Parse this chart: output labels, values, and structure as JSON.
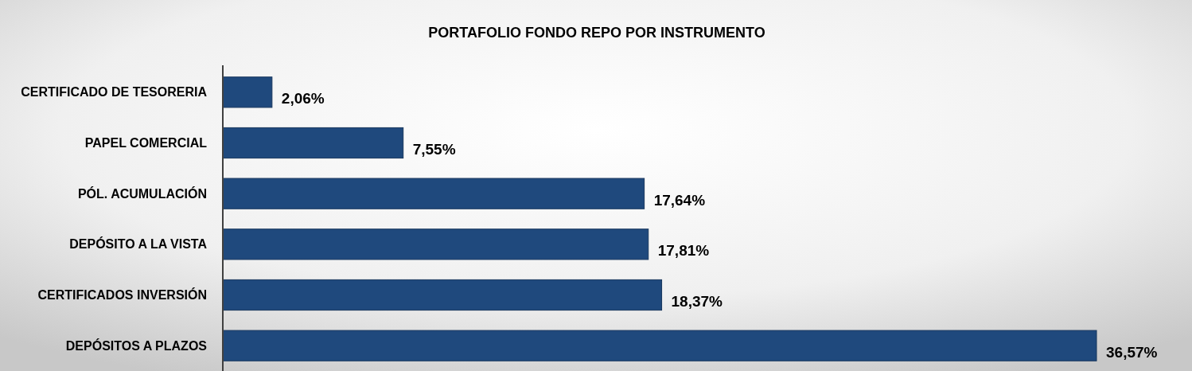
{
  "chart_data": {
    "type": "bar",
    "orientation": "horizontal",
    "title": "PORTAFOLIO FONDO REPO POR INSTRUMENTO",
    "categories": [
      "CERTIFICADO DE TESORERIA",
      "PAPEL COMERCIAL",
      "PÓL. ACUMULACIÓN",
      "DEPÓSITO A LA VISTA",
      "CERTIFICADOS INVERSIÓN",
      "DEPÓSITOS A PLAZOS"
    ],
    "values": [
      2.06,
      7.55,
      17.64,
      17.81,
      18.37,
      36.57
    ],
    "value_labels": [
      "2,06%",
      "7,55%",
      "17,64%",
      "17,81%",
      "18,37%",
      "36,57%"
    ],
    "color": "#1f497d"
  }
}
